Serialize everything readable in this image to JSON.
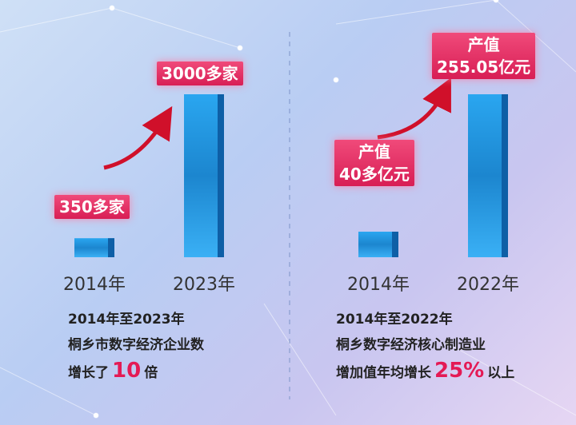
{
  "chart_data": [
    {
      "type": "bar",
      "categories": [
        "2014年",
        "2023年"
      ],
      "values": [
        350,
        3000
      ],
      "value_labels": [
        "350多家",
        "3000多家"
      ],
      "color": "#2a9ee8",
      "notes": [
        "2014年至2023年",
        "桐乡市数字经济企业数"
      ],
      "highlight_line": [
        "增长了",
        "10",
        "倍"
      ]
    },
    {
      "type": "bar",
      "categories": [
        "2014年",
        "2022年"
      ],
      "values": [
        40,
        255.05
      ],
      "value_labels": [
        "产值\n40多亿元",
        "产值\n255.05亿元"
      ],
      "color": "#2a9ee8",
      "notes": [
        "2014年至2022年",
        "桐乡数字经济核心制造业"
      ],
      "highlight_line": [
        "增加值年均增长",
        "25%",
        "以上"
      ]
    }
  ]
}
